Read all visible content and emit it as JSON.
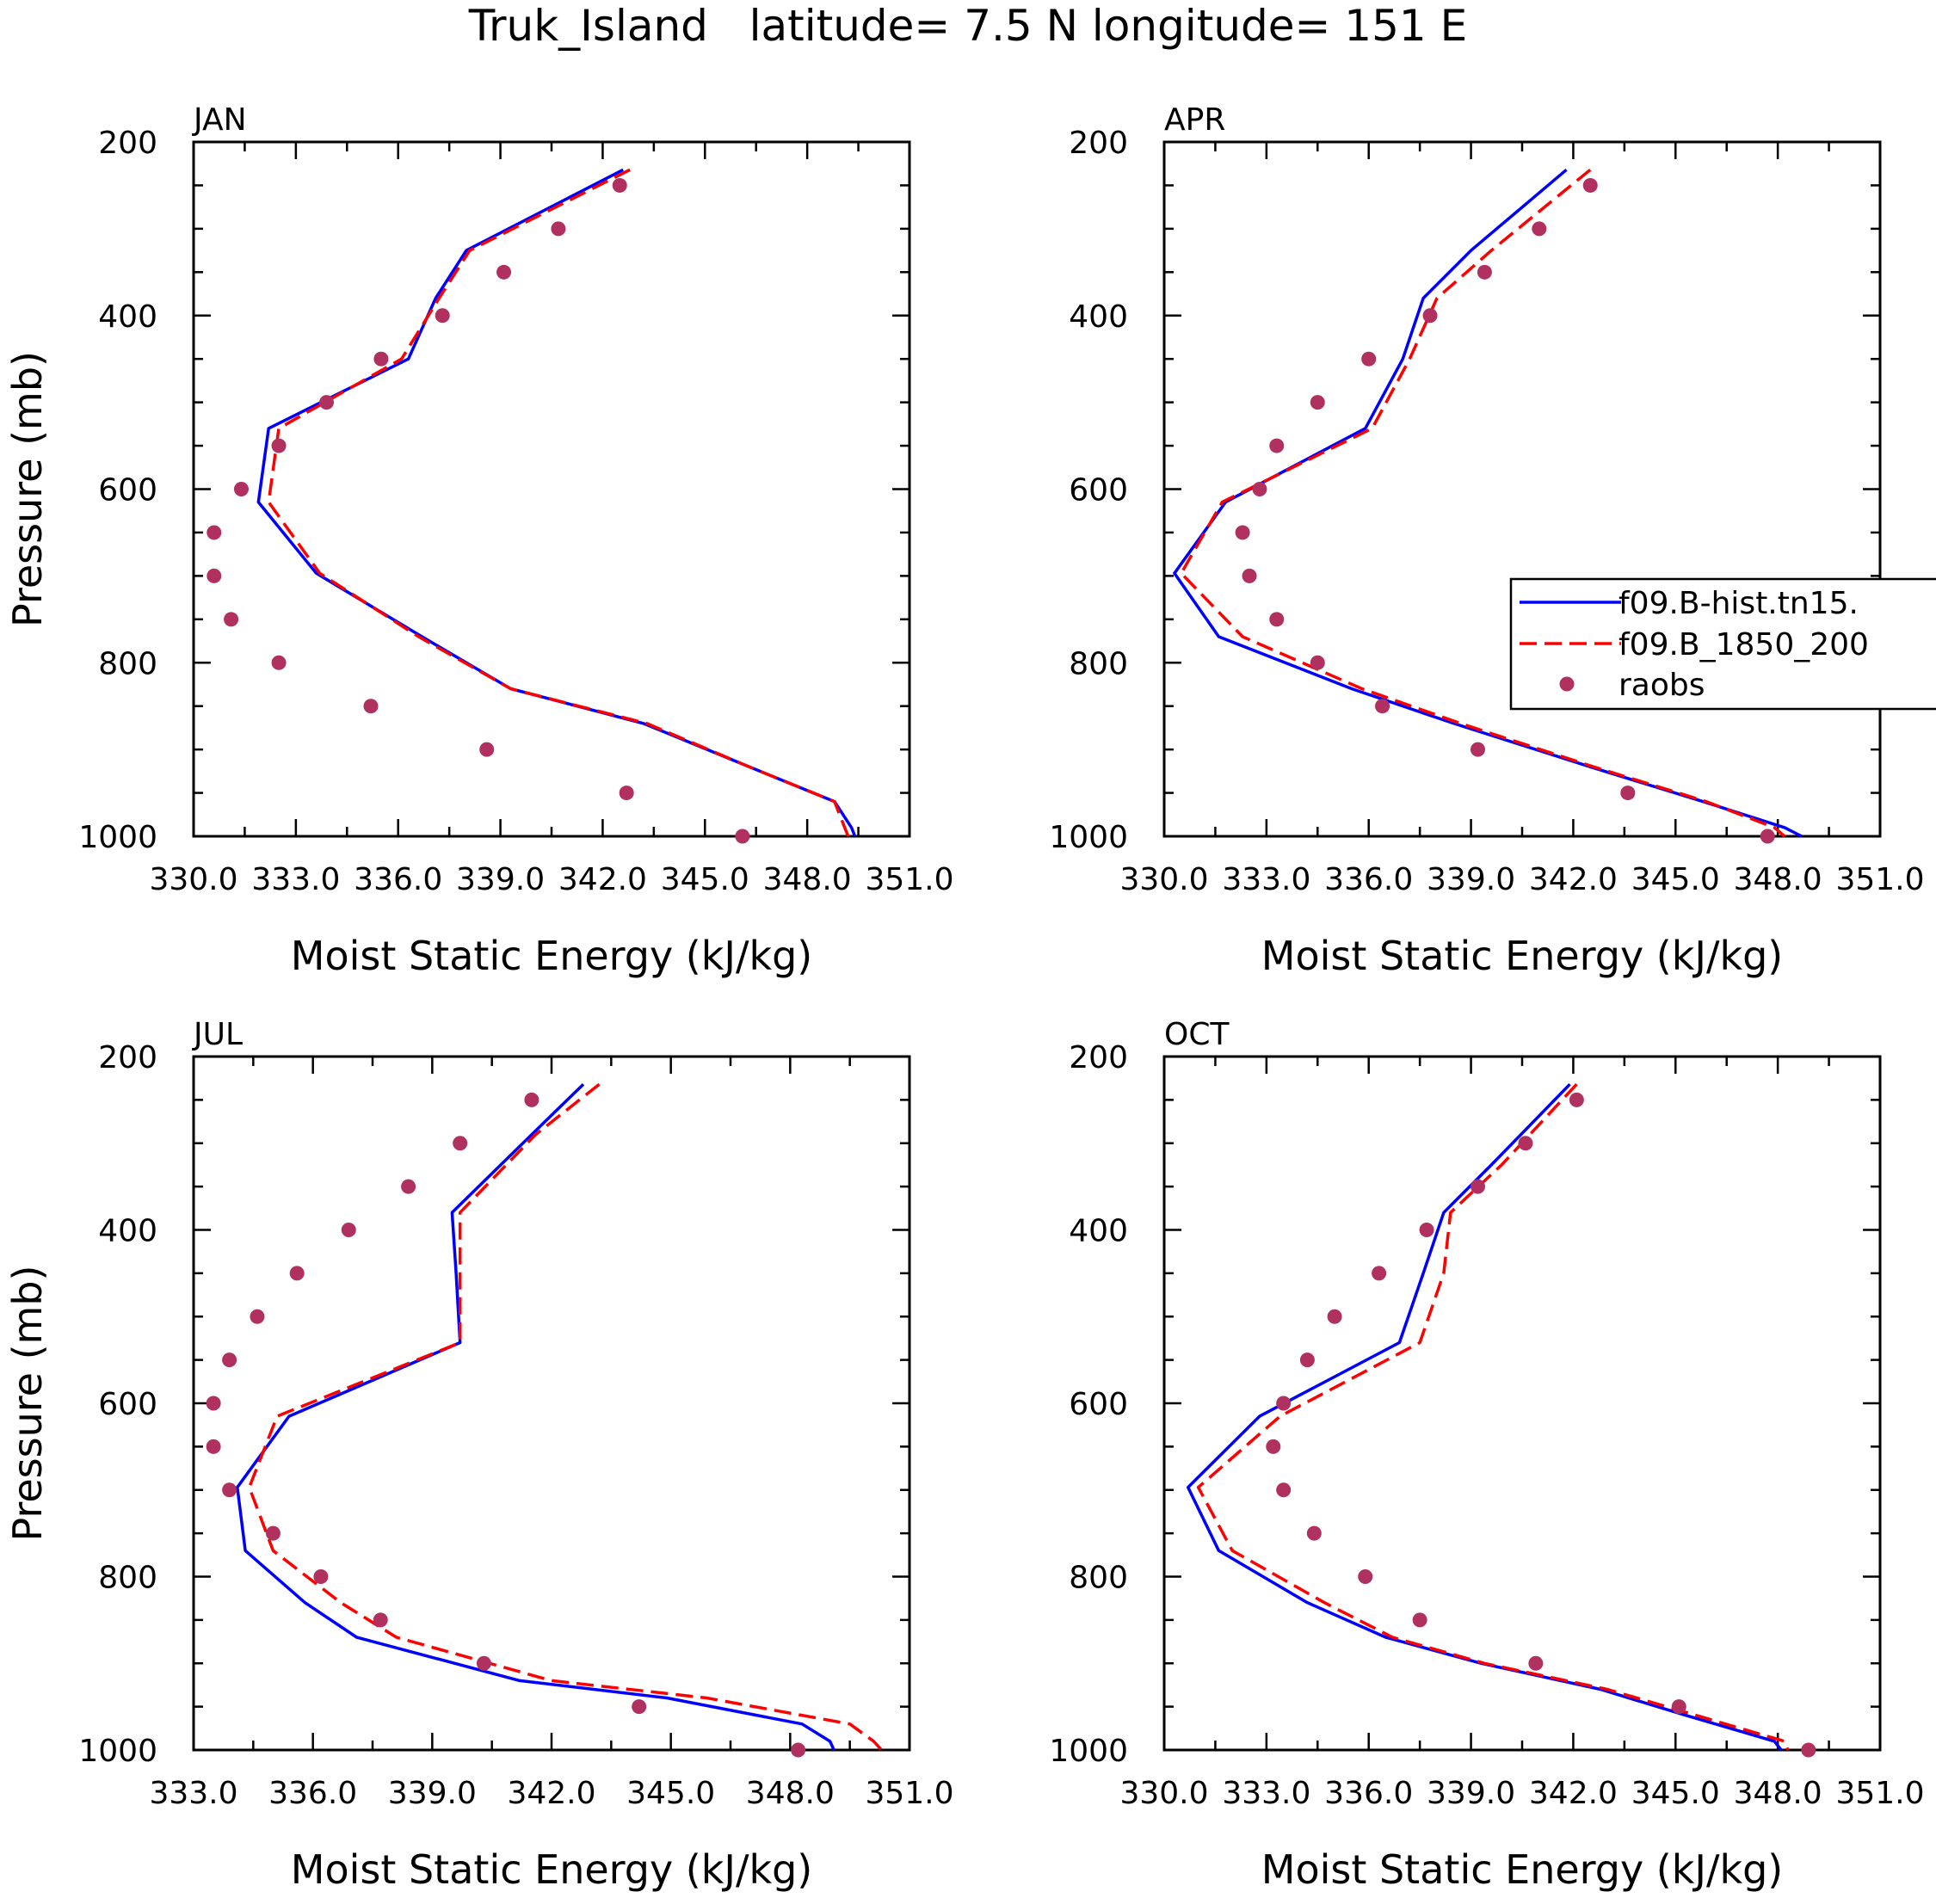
{
  "title": "Truk_Island   latitude= 7.5 N longitude= 151 E",
  "colors": {
    "model_hist": "#0000ff",
    "model_1850": "#ff0000",
    "raobs": "#b03060",
    "frame": "#000000"
  },
  "legend": {
    "entries": [
      "f09.B-hist.tn15.",
      "f09.B_1850_200",
      "raobs"
    ]
  },
  "chart_data": [
    {
      "type": "line",
      "panel": "JAN",
      "title": "JAN",
      "xlabel": "Moist Static Energy (kJ/kg)",
      "ylabel": "Pressure (mb)",
      "xlim": [
        330,
        351
      ],
      "ylim": [
        1000,
        200
      ],
      "xticks": [
        330,
        333,
        336,
        339,
        342,
        345,
        348,
        351
      ],
      "xtick_labels": [
        "330.0",
        "333.0",
        "336.0",
        "339.0",
        "342.0",
        "345.0",
        "348.0",
        "351.0"
      ],
      "yticks": [
        200,
        400,
        600,
        800,
        1000
      ],
      "ytick_labels": [
        "200",
        "400",
        "600",
        "800",
        "1000"
      ],
      "series": [
        {
          "name": "f09.B-hist.tn15.",
          "style": "solid",
          "x": [
            342.6,
            338.0,
            337.1,
            336.3,
            332.2,
            331.9,
            333.6,
            336.7,
            339.3,
            343.2,
            346.3,
            348.8,
            349.3,
            349.4
          ],
          "y": [
            232,
            325,
            380,
            450,
            530,
            615,
            697,
            770,
            830,
            870,
            920,
            960,
            990,
            1000
          ]
        },
        {
          "name": "f09.B_1850_200",
          "style": "dashed",
          "x": [
            342.8,
            338.1,
            337.2,
            336.1,
            332.5,
            332.2,
            333.7,
            336.6,
            339.3,
            343.3,
            346.3,
            348.8,
            349.1,
            349.2
          ],
          "y": [
            232,
            325,
            380,
            450,
            530,
            615,
            697,
            770,
            830,
            870,
            920,
            960,
            990,
            1000
          ]
        },
        {
          "name": "raobs",
          "style": "points",
          "x": [
            342.5,
            340.7,
            339.1,
            337.3,
            335.5,
            333.9,
            332.5,
            331.4,
            330.6,
            330.6,
            331.1,
            332.5,
            335.2,
            338.6,
            342.7,
            346.1
          ],
          "y": [
            250,
            300,
            350,
            400,
            450,
            500,
            550,
            600,
            650,
            700,
            750,
            800,
            850,
            900,
            950,
            1000
          ]
        }
      ]
    },
    {
      "type": "line",
      "panel": "APR",
      "title": "APR",
      "xlabel": "Moist Static Energy (kJ/kg)",
      "ylabel": "",
      "xlim": [
        330,
        351
      ],
      "ylim": [
        1000,
        200
      ],
      "xticks": [
        330,
        333,
        336,
        339,
        342,
        345,
        348,
        351
      ],
      "xtick_labels": [
        "330.0",
        "333.0",
        "336.0",
        "339.0",
        "342.0",
        "345.0",
        "348.0",
        "351.0"
      ],
      "yticks": [
        200,
        400,
        600,
        800,
        1000
      ],
      "ytick_labels": [
        "200",
        "400",
        "600",
        "800",
        "1000"
      ],
      "series": [
        {
          "name": "f09.B-hist.tn15.",
          "style": "solid",
          "x": [
            341.8,
            339.0,
            337.6,
            337.0,
            335.9,
            331.8,
            330.3,
            331.6,
            335.5,
            338.5,
            342.5,
            345.8,
            348.2,
            348.7
          ],
          "y": [
            232,
            325,
            380,
            450,
            530,
            615,
            697,
            770,
            830,
            870,
            920,
            960,
            990,
            1000
          ]
        },
        {
          "name": "f09.B_1850_200",
          "style": "dashed",
          "x": [
            342.5,
            339.6,
            338.0,
            337.2,
            336.1,
            331.7,
            330.5,
            332.3,
            335.8,
            338.7,
            342.6,
            345.9,
            347.9,
            348.2
          ],
          "y": [
            232,
            325,
            380,
            450,
            530,
            615,
            697,
            770,
            830,
            870,
            920,
            960,
            990,
            1000
          ]
        },
        {
          "name": "raobs",
          "style": "points",
          "x": [
            342.5,
            341.0,
            339.4,
            337.8,
            336.0,
            334.5,
            333.3,
            332.8,
            332.3,
            332.5,
            333.3,
            334.5,
            336.4,
            339.2,
            343.6,
            347.7
          ],
          "y": [
            250,
            300,
            350,
            400,
            450,
            500,
            550,
            600,
            650,
            700,
            750,
            800,
            850,
            900,
            950,
            1000
          ]
        }
      ]
    },
    {
      "type": "line",
      "panel": "JUL",
      "title": "JUL",
      "xlabel": "Moist Static Energy (kJ/kg)",
      "ylabel": "Pressure (mb)",
      "xlim": [
        333,
        351
      ],
      "ylim": [
        1000,
        200
      ],
      "xticks": [
        333,
        336,
        339,
        342,
        345,
        348,
        351
      ],
      "xtick_labels": [
        "333.0",
        "336.0",
        "339.0",
        "342.0",
        "345.0",
        "348.0",
        "351.0"
      ],
      "yticks": [
        200,
        400,
        600,
        800,
        1000
      ],
      "ytick_labels": [
        "200",
        "400",
        "600",
        "800",
        "1000"
      ],
      "series": [
        {
          "name": "f09.B-hist.tn15.",
          "style": "solid",
          "x": [
            342.8,
            341.5,
            339.5,
            339.6,
            339.7,
            335.4,
            334.1,
            334.3,
            335.8,
            337.1,
            341.2,
            344.9,
            348.3,
            349.0,
            349.1
          ],
          "y": [
            232,
            290,
            380,
            450,
            530,
            615,
            697,
            770,
            830,
            870,
            920,
            940,
            970,
            990,
            1000
          ]
        },
        {
          "name": "f09.B_1850_200",
          "style": "dashed",
          "x": [
            343.2,
            341.6,
            339.7,
            339.7,
            339.7,
            335.1,
            334.4,
            335.0,
            336.7,
            338.1,
            342.0,
            345.9,
            349.5,
            350.1,
            350.3
          ],
          "y": [
            232,
            290,
            380,
            450,
            530,
            615,
            697,
            770,
            830,
            870,
            920,
            940,
            970,
            990,
            1000
          ]
        },
        {
          "name": "raobs",
          "style": "points",
          "x": [
            341.5,
            339.7,
            338.4,
            336.9,
            335.6,
            334.6,
            333.9,
            333.5,
            333.5,
            333.9,
            335.0,
            336.2,
            337.7,
            340.3,
            344.2,
            348.2
          ],
          "y": [
            250,
            300,
            350,
            400,
            450,
            500,
            550,
            600,
            650,
            700,
            750,
            800,
            850,
            900,
            950,
            1000
          ]
        }
      ]
    },
    {
      "type": "line",
      "panel": "OCT",
      "title": "OCT",
      "xlabel": "Moist Static Energy (kJ/kg)",
      "ylabel": "",
      "xlim": [
        330,
        351
      ],
      "ylim": [
        1000,
        200
      ],
      "xticks": [
        330,
        333,
        336,
        339,
        342,
        345,
        348,
        351
      ],
      "xtick_labels": [
        "330.0",
        "333.0",
        "336.0",
        "339.0",
        "342.0",
        "345.0",
        "348.0",
        "351.0"
      ],
      "yticks": [
        200,
        400,
        600,
        800,
        1000
      ],
      "ytick_labels": [
        "200",
        "400",
        "600",
        "800",
        "1000"
      ],
      "series": [
        {
          "name": "f09.B-hist.tn15.",
          "style": "solid",
          "x": [
            341.9,
            339.6,
            338.2,
            337.6,
            336.9,
            332.8,
            330.7,
            331.6,
            334.2,
            336.5,
            339.3,
            342.8,
            345.3,
            347.9,
            348.1
          ],
          "y": [
            232,
            325,
            380,
            450,
            530,
            615,
            697,
            770,
            830,
            870,
            900,
            930,
            960,
            990,
            1000
          ]
        },
        {
          "name": "f09.B_1850_200",
          "style": "dashed",
          "x": [
            342.1,
            339.9,
            338.4,
            338.2,
            337.5,
            333.4,
            331.0,
            332.0,
            334.7,
            336.7,
            339.4,
            343.0,
            345.6,
            348.2,
            348.3
          ],
          "y": [
            232,
            325,
            380,
            450,
            530,
            615,
            697,
            770,
            830,
            870,
            900,
            930,
            960,
            990,
            1000
          ]
        },
        {
          "name": "raobs",
          "style": "points",
          "x": [
            342.1,
            340.6,
            339.2,
            337.7,
            336.3,
            335.0,
            334.2,
            333.5,
            333.2,
            333.5,
            334.4,
            335.9,
            337.5,
            340.9,
            345.1,
            348.9
          ],
          "y": [
            250,
            300,
            350,
            400,
            450,
            500,
            550,
            600,
            650,
            700,
            750,
            800,
            850,
            900,
            950,
            1000
          ]
        }
      ]
    }
  ]
}
